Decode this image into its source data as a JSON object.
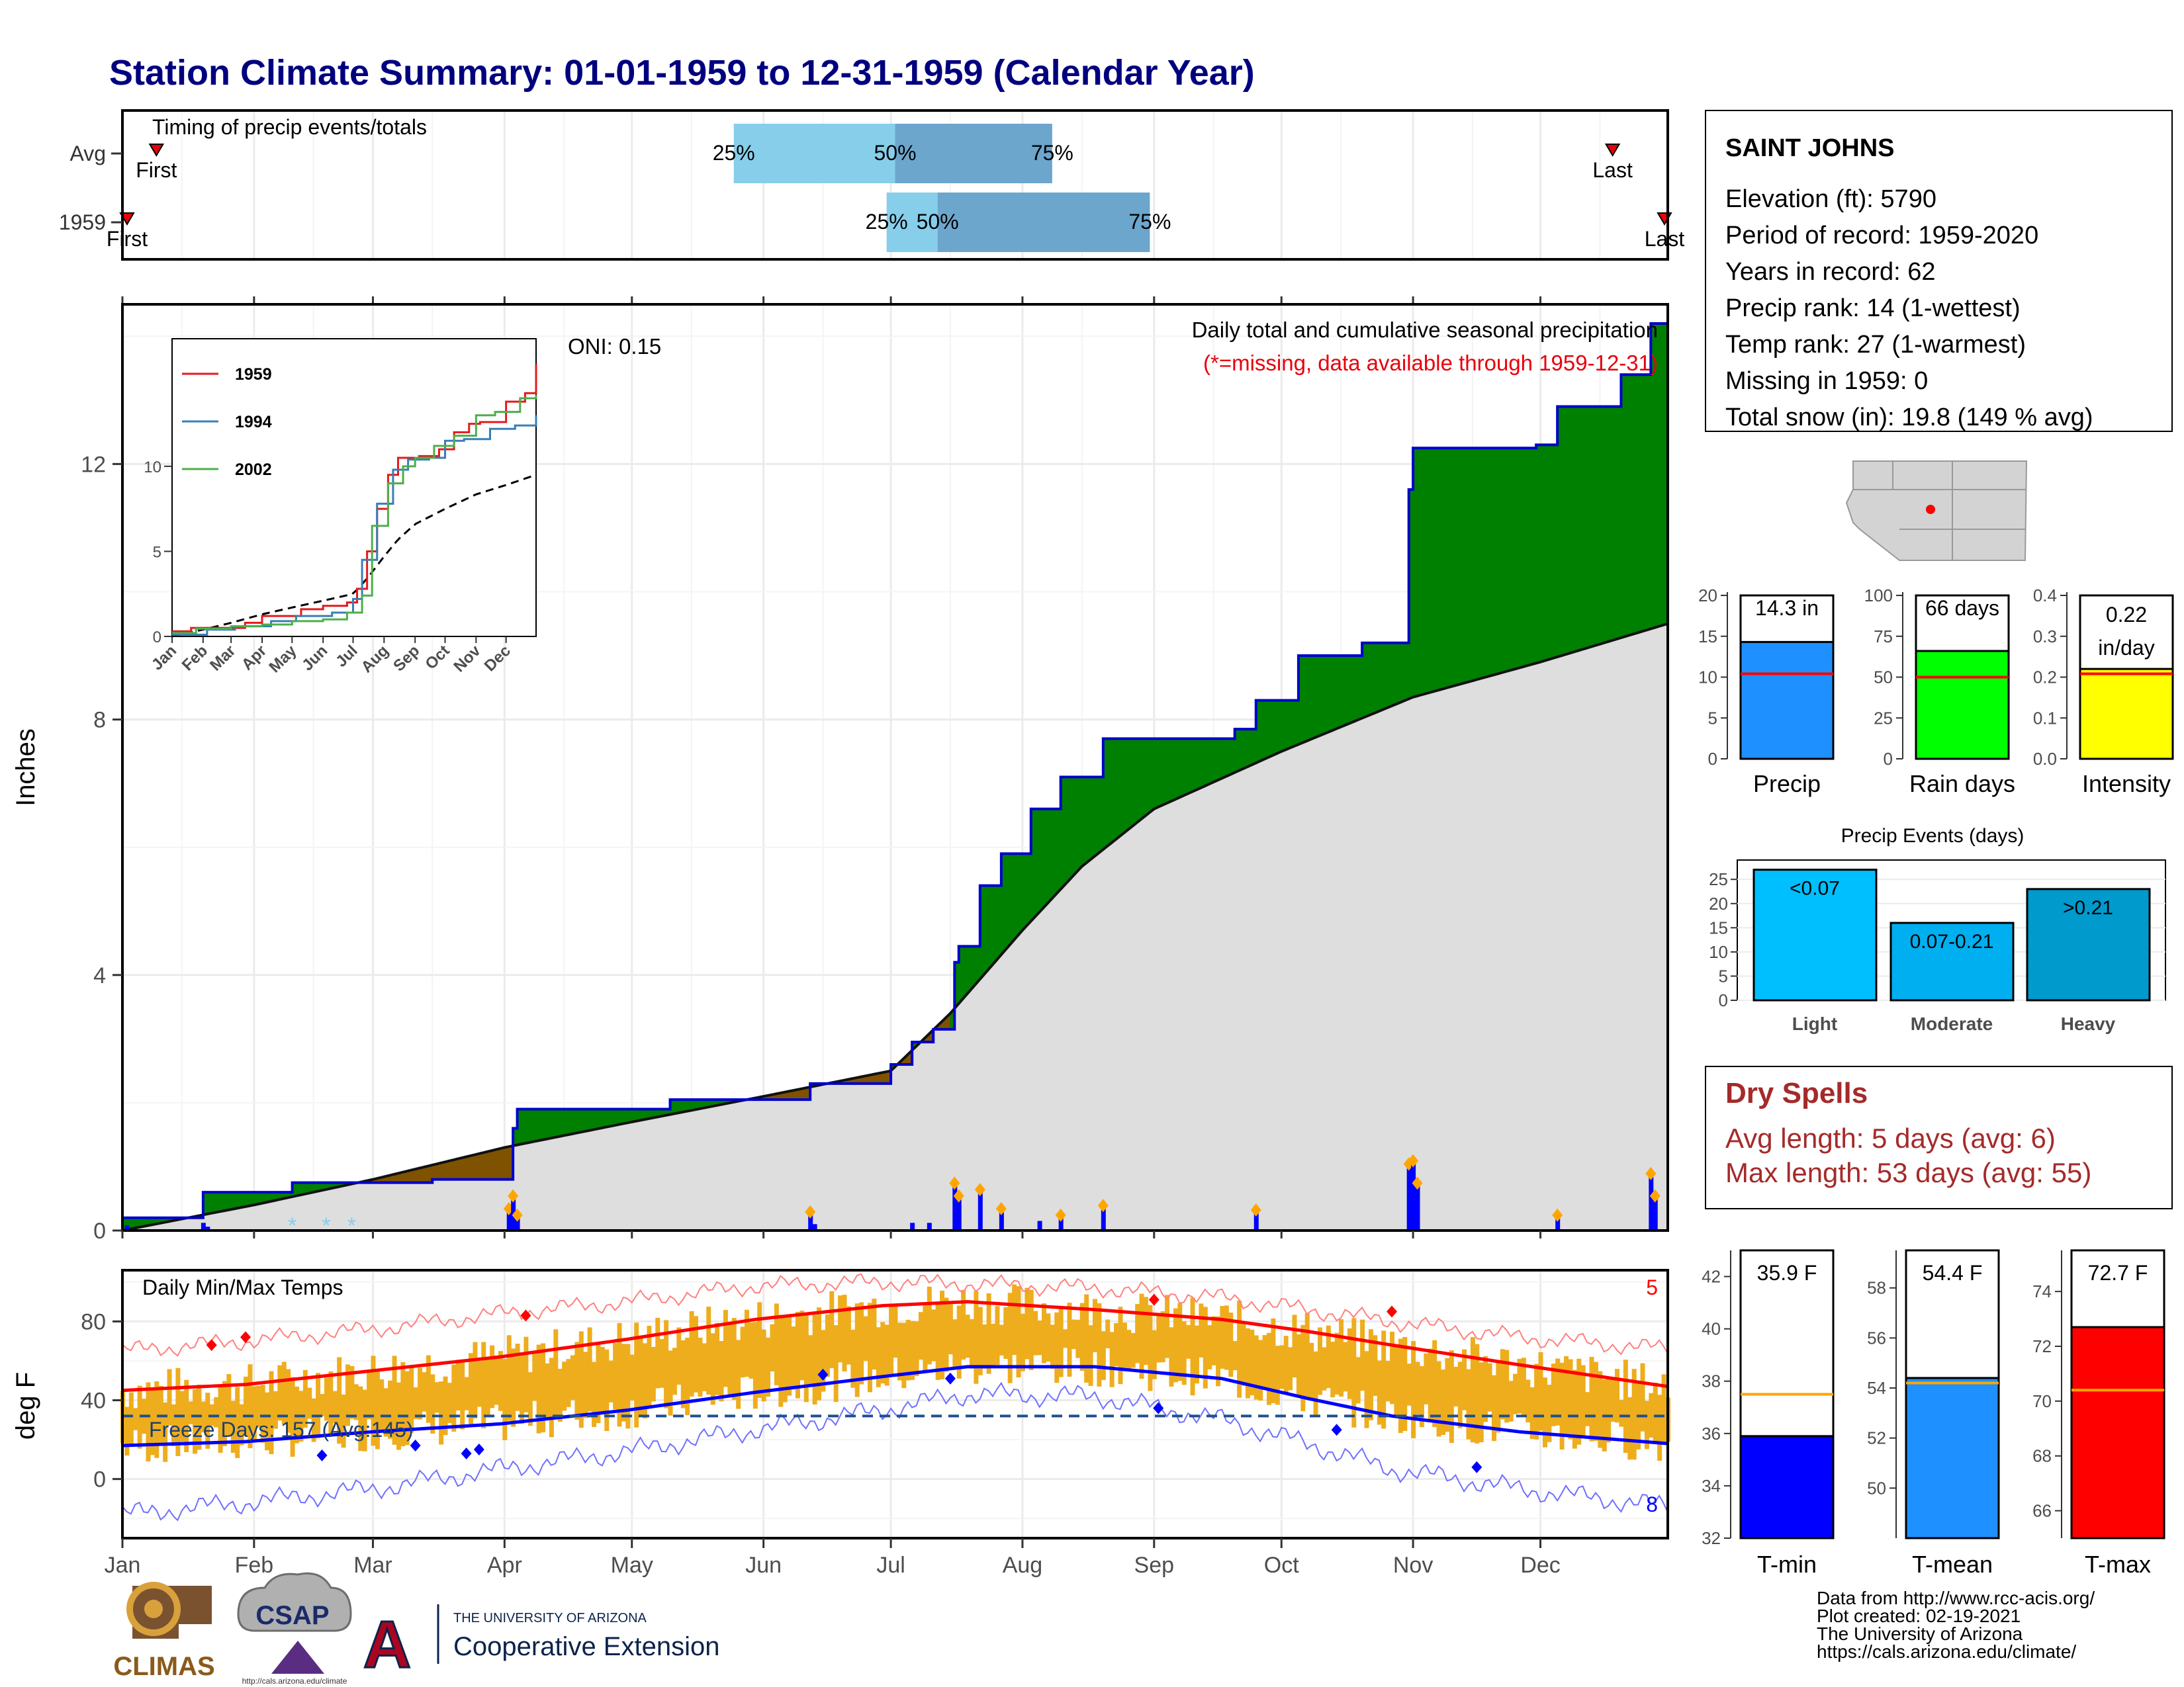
{
  "title": "Station Climate Summary: 01-01-1959 to 12-31-1959 (Calendar Year)",
  "timing_panel": {
    "label": "Timing of precip events/totals",
    "rows": [
      {
        "row": "Avg",
        "q25": "May 25",
        "q50": "Jul 2",
        "q75": "Aug 8",
        "first_label": "First",
        "last_label": "Last",
        "first": "Jan 9",
        "last": "Dec 18"
      },
      {
        "row": "1959",
        "q25": "Jun 30",
        "q50": "Jul 12",
        "q75": "Aug 31",
        "first_label": "First",
        "last_label": "Last",
        "first": "Jan 1",
        "last": "Dec 31"
      }
    ],
    "pct_labels": [
      "25%",
      "50%",
      "75%"
    ]
  },
  "station_box": {
    "name": "SAINT JOHNS",
    "lines": [
      "Elevation (ft): 5790",
      "Period of record: 1959-2020",
      "Years in record: 62",
      "Precip rank: 14 (1-wettest)",
      "Temp rank: 27 (1-warmest)",
      "Missing in 1959: 0",
      "Total snow (in): 19.8 (149 % avg)"
    ]
  },
  "precip_panel": {
    "ylabel": "Inches",
    "caption": "Daily total and cumulative seasonal precipitation",
    "missing_note": "(*=missing, data available through 1959-12-31)",
    "oni": "ONI: 0.15",
    "yticks": [
      0,
      4,
      8,
      12
    ],
    "ylim": [
      0,
      14.5
    ]
  },
  "inset_chart": {
    "yticks": [
      0,
      5,
      10
    ],
    "months": [
      "Jan",
      "Feb",
      "Mar",
      "Apr",
      "May",
      "Jun",
      "Jul",
      "Aug",
      "Sep",
      "Oct",
      "Nov",
      "Dec"
    ],
    "legend": [
      {
        "name": "1959",
        "color": "#e41a1c"
      },
      {
        "name": "1994",
        "color": "#377eb8"
      },
      {
        "name": "2002",
        "color": "#4daf4a"
      }
    ]
  },
  "temp_panel": {
    "ylabel": "deg F",
    "label": "Daily Min/Max Temps",
    "freeze_label": "Freeze Days: 157 (Avg:145)",
    "hot_count": "5",
    "cold_count": "8",
    "yticks": [
      0,
      40,
      80
    ],
    "freeze_line": 32
  },
  "months": [
    "Jan",
    "Feb",
    "Mar",
    "Apr",
    "May",
    "Jun",
    "Jul",
    "Aug",
    "Sep",
    "Oct",
    "Nov",
    "Dec"
  ],
  "summary_bars": [
    {
      "name": "Precip",
      "label": "14.3 in",
      "value": 14.3,
      "avg": 10.4,
      "color": "#1e90ff",
      "ymax": 20,
      "yticks": [
        0,
        5,
        10,
        15,
        20
      ]
    },
    {
      "name": "Rain days",
      "label": "66 days",
      "value": 66,
      "avg": 50,
      "color": "#00ff00",
      "ymax": 100,
      "yticks": [
        0,
        25,
        50,
        75,
        100
      ]
    },
    {
      "name": "Intensity",
      "label": "0.22 in/day",
      "label_lines": [
        "0.22",
        "in/day"
      ],
      "value": 0.22,
      "avg": 0.208,
      "color": "#ffff00",
      "ymax": 0.4,
      "yticks": [
        "0.0",
        "0.1",
        "0.2",
        "0.3",
        "0.4"
      ]
    }
  ],
  "precip_events": {
    "title": "Precip Events (days)",
    "yticks": [
      0,
      5,
      10,
      15,
      20,
      25
    ],
    "bars": [
      {
        "cat": "Light",
        "label": "<0.07",
        "value": 27,
        "color": "#00bfff"
      },
      {
        "cat": "Moderate",
        "label": "0.07-0.21",
        "value": 16,
        "color": "#00afef"
      },
      {
        "cat": "Heavy",
        "label": ">0.21",
        "value": 23,
        "color": "#009acd"
      }
    ]
  },
  "dry_spells": {
    "title": "Dry Spells",
    "lines": [
      "Avg length: 5 days (avg: 6)",
      "Max length: 53 days (avg: 55)"
    ]
  },
  "temp_bars": [
    {
      "name": "T-min",
      "label": "35.9 F",
      "value": 35.9,
      "avg": 37.5,
      "color": "#0000ff",
      "ymin": 32,
      "ymax": 43,
      "yticks": [
        32,
        34,
        36,
        38,
        40,
        42
      ]
    },
    {
      "name": "T-mean",
      "label": "54.4 F",
      "value": 54.4,
      "avg": 54.2,
      "color": "#1e90ff",
      "ymin": 48,
      "ymax": 59.5,
      "yticks": [
        50,
        52,
        54,
        56,
        58
      ]
    },
    {
      "name": "T-max",
      "label": "72.7 F",
      "value": 72.7,
      "avg": 70.4,
      "color": "#ff0000",
      "ymin": 65,
      "ymax": 75.5,
      "yticks": [
        66,
        68,
        70,
        72,
        74
      ]
    }
  ],
  "footer": [
    "Data from http://www.rcc-acis.org/",
    "Plot created: 02-19-2021",
    "The University of Arizona",
    "https://cals.arizona.edu/climate/"
  ],
  "logos": {
    "climas": "CLIMAS",
    "csap": "CSAP",
    "csap_url": "http://cals.arizona.edu/climate",
    "ua_small": "THE UNIVERSITY OF ARIZONA",
    "coop": "Cooperative Extension",
    "ua_letter": "A"
  },
  "chart_data": [
    {
      "type": "area",
      "title": "Daily total and cumulative seasonal precipitation",
      "ylabel": "Inches",
      "ylim": [
        0,
        14.5
      ],
      "x_unit": "date (1959)",
      "series": [
        {
          "name": "cumulative 1959",
          "points": [
            [
              "Jan 1",
              0.2
            ],
            [
              "Jan 20",
              0.6
            ],
            [
              "Feb 10",
              0.75
            ],
            [
              "Mar 15",
              0.8
            ],
            [
              "Apr 3",
              1.6
            ],
            [
              "Apr 4",
              1.9
            ],
            [
              "May 10",
              2.05
            ],
            [
              "Jun 12",
              2.3
            ],
            [
              "Jul 1",
              2.6
            ],
            [
              "Jul 6",
              2.95
            ],
            [
              "Jul 11",
              3.15
            ],
            [
              "Jul 16",
              4.2
            ],
            [
              "Jul 17",
              4.45
            ],
            [
              "Jul 22",
              5.4
            ],
            [
              "Jul 27",
              5.9
            ],
            [
              "Aug 3",
              6.6
            ],
            [
              "Aug 10",
              7.1
            ],
            [
              "Aug 20",
              7.7
            ],
            [
              "Sep 20",
              7.85
            ],
            [
              "Sep 25",
              8.3
            ],
            [
              "Oct 5",
              9.0
            ],
            [
              "Oct 20",
              9.2
            ],
            [
              "Oct 31",
              11.6
            ],
            [
              "Nov 1",
              12.25
            ],
            [
              "Nov 30",
              12.3
            ],
            [
              "Dec 5",
              12.9
            ],
            [
              "Dec 20",
              13.4
            ],
            [
              "Dec 27",
              14.2
            ],
            [
              "Dec 31",
              14.3
            ]
          ]
        },
        {
          "name": "average cumulative",
          "points": [
            [
              "Jan 1",
              0.0
            ],
            [
              "Feb 1",
              0.4
            ],
            [
              "Mar 1",
              0.8
            ],
            [
              "Apr 1",
              1.3
            ],
            [
              "May 1",
              1.7
            ],
            [
              "Jun 1",
              2.1
            ],
            [
              "Jul 1",
              2.5
            ],
            [
              "Jul 15",
              3.4
            ],
            [
              "Aug 1",
              4.7
            ],
            [
              "Aug 15",
              5.7
            ],
            [
              "Sep 1",
              6.6
            ],
            [
              "Oct 1",
              7.5
            ],
            [
              "Nov 1",
              8.35
            ],
            [
              "Dec 1",
              8.9
            ],
            [
              "Dec 31",
              9.5
            ]
          ]
        }
      ],
      "daily": [
        [
          "Jan 2",
          0.08
        ],
        [
          "Jan 20",
          0.12
        ],
        [
          "Jan 21",
          0.06
        ],
        [
          "Apr 2",
          0.3
        ],
        [
          "Apr 3",
          0.5
        ],
        [
          "Apr 4",
          0.2
        ],
        [
          "Jun 12",
          0.25
        ],
        [
          "Jun 13",
          0.1
        ],
        [
          "Jul 6",
          0.12
        ],
        [
          "Jul 10",
          0.12
        ],
        [
          "Jul 16",
          0.7
        ],
        [
          "Jul 17",
          0.5
        ],
        [
          "Jul 22",
          0.6
        ],
        [
          "Jul 27",
          0.3
        ],
        [
          "Aug 5",
          0.15
        ],
        [
          "Aug 10",
          0.2
        ],
        [
          "Aug 20",
          0.35
        ],
        [
          "Sep 25",
          0.28
        ],
        [
          "Oct 31",
          1.0
        ],
        [
          "Nov 1",
          1.05
        ],
        [
          "Nov 2",
          0.7
        ],
        [
          "Dec 5",
          0.2
        ],
        [
          "Dec 27",
          0.85
        ],
        [
          "Dec 28",
          0.5
        ]
      ]
    },
    {
      "type": "line",
      "title": "Daily Min/Max Temps",
      "ylabel": "deg F",
      "ylim": [
        -30,
        106
      ],
      "series": [
        {
          "name": "normal max",
          "values": [
            [
              1,
              45
            ],
            [
              30,
              48
            ],
            [
              60,
              55
            ],
            [
              90,
              62
            ],
            [
              120,
              71
            ],
            [
              150,
              81
            ],
            [
              180,
              88
            ],
            [
              200,
              90
            ],
            [
              230,
              86
            ],
            [
              260,
              81
            ],
            [
              280,
              75
            ],
            [
              300,
              68
            ],
            [
              330,
              58
            ],
            [
              365,
              47
            ]
          ]
        },
        {
          "name": "normal min",
          "values": [
            [
              1,
              17
            ],
            [
              30,
              19
            ],
            [
              60,
              24
            ],
            [
              90,
              28
            ],
            [
              120,
              35
            ],
            [
              150,
              44
            ],
            [
              180,
              52
            ],
            [
              200,
              57
            ],
            [
              230,
              57
            ],
            [
              260,
              51
            ],
            [
              280,
              41
            ],
            [
              300,
              32
            ],
            [
              330,
              24
            ],
            [
              365,
              18
            ]
          ]
        },
        {
          "name": "record max",
          "values": [
            [
              1,
              65
            ],
            [
              30,
              70
            ],
            [
              60,
              76
            ],
            [
              90,
              84
            ],
            [
              120,
              90
            ],
            [
              150,
              98
            ],
            [
              180,
              100
            ],
            [
              200,
              99
            ],
            [
              230,
              97
            ],
            [
              260,
              92
            ],
            [
              280,
              86
            ],
            [
              300,
              80
            ],
            [
              330,
              72
            ],
            [
              365,
              66
            ]
          ]
        },
        {
          "name": "record min",
          "values": [
            [
              1,
              -18
            ],
            [
              30,
              -12
            ],
            [
              60,
              -5
            ],
            [
              90,
              5
            ],
            [
              120,
              14
            ],
            [
              150,
              25
            ],
            [
              180,
              35
            ],
            [
              200,
              43
            ],
            [
              230,
              42
            ],
            [
              260,
              30
            ],
            [
              280,
              18
            ],
            [
              300,
              5
            ],
            [
              330,
              -5
            ],
            [
              365,
              -14
            ]
          ]
        }
      ]
    }
  ]
}
